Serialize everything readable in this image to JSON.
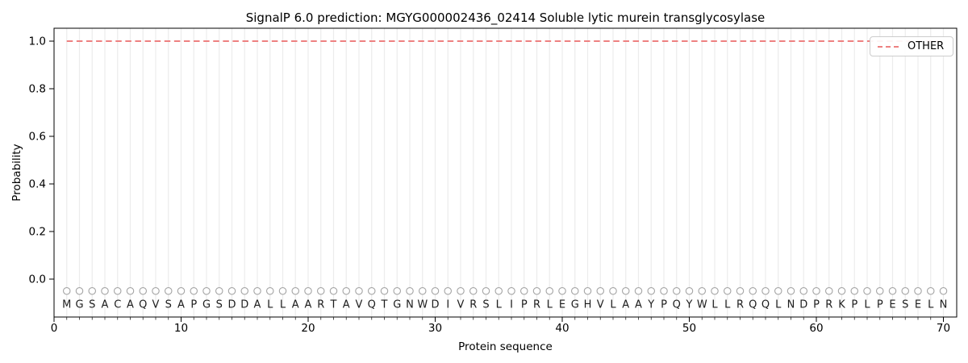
{
  "figure": {
    "title": "SignalP 6.0 prediction: MGYG000002436_02414 Soluble lytic murein transglycosylase"
  },
  "axes": {
    "xlabel": "Protein sequence",
    "ylabel": "Probability",
    "xtick_labels": [
      "0",
      "10",
      "20",
      "30",
      "40",
      "50",
      "60",
      "70"
    ],
    "ytick_labels": [
      "0.0",
      "0.2",
      "0.4",
      "0.6",
      "0.8",
      "1.0"
    ]
  },
  "legend": {
    "items": [
      {
        "label": "OTHER",
        "color": "#ee8181",
        "line_style": "dashed"
      }
    ]
  },
  "chart_data": {
    "type": "line",
    "title": "SignalP 6.0 prediction: MGYG000002436_02414 Soluble lytic murein transglycosylase",
    "xlabel": "Protein sequence",
    "ylabel": "Probability",
    "xlim": [
      0,
      71
    ],
    "ylim": [
      -0.155,
      1.055
    ],
    "xticks": [
      0,
      10,
      20,
      30,
      40,
      50,
      60,
      70
    ],
    "yticks": [
      0.0,
      0.2,
      0.4,
      0.6,
      0.8,
      1.0
    ],
    "grid": "light vertical gridline at each residue position, no horizontal gridlines",
    "legend_position": "upper right",
    "sequence": "MGSACAQVSAPGSDDALLAARTAVQTGNWDIVRSLIPRLEGHVLAAYPQYWLLRQQLNDPRKPLPESELN",
    "series": [
      {
        "name": "OTHER",
        "style": "dashed",
        "color": "#ee8181",
        "x": [
          1,
          2,
          3,
          4,
          5,
          6,
          7,
          8,
          9,
          10,
          11,
          12,
          13,
          14,
          15,
          16,
          17,
          18,
          19,
          20,
          21,
          22,
          23,
          24,
          25,
          26,
          27,
          28,
          29,
          30,
          31,
          32,
          33,
          34,
          35,
          36,
          37,
          38,
          39,
          40,
          41,
          42,
          43,
          44,
          45,
          46,
          47,
          48,
          49,
          50,
          51,
          52,
          53,
          54,
          55,
          56,
          57,
          58,
          59,
          60,
          61,
          62,
          63,
          64,
          65,
          66,
          67,
          68,
          69,
          70
        ],
        "values": [
          1.0,
          1.0,
          1.0,
          1.0,
          1.0,
          1.0,
          1.0,
          1.0,
          1.0,
          1.0,
          1.0,
          1.0,
          1.0,
          1.0,
          1.0,
          1.0,
          1.0,
          1.0,
          1.0,
          1.0,
          1.0,
          1.0,
          1.0,
          1.0,
          1.0,
          1.0,
          1.0,
          1.0,
          1.0,
          1.0,
          1.0,
          1.0,
          1.0,
          1.0,
          1.0,
          1.0,
          1.0,
          1.0,
          1.0,
          1.0,
          1.0,
          1.0,
          1.0,
          1.0,
          1.0,
          1.0,
          1.0,
          1.0,
          1.0,
          1.0,
          1.0,
          1.0,
          1.0,
          1.0,
          1.0,
          1.0,
          1.0,
          1.0,
          1.0,
          1.0,
          1.0,
          1.0,
          1.0,
          1.0,
          1.0,
          1.0,
          1.0,
          1.0,
          1.0,
          1.0
        ]
      }
    ],
    "residue_markers": {
      "shape": "open-circle",
      "color": "#a3a3a3",
      "y": -0.05
    },
    "residue_letter_y": -0.105,
    "residue_letter_color": "#1c1c1c"
  }
}
